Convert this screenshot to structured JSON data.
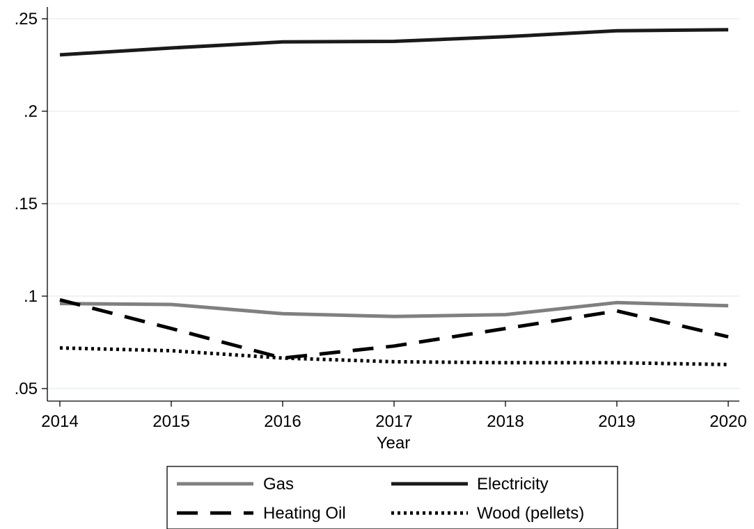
{
  "chart_data": {
    "type": "line",
    "title": "",
    "xlabel": "Year",
    "ylabel": "",
    "x": [
      2014,
      2015,
      2016,
      2017,
      2018,
      2019,
      2020
    ],
    "xlim": [
      2014,
      2020
    ],
    "ylim": [
      0.05,
      0.25
    ],
    "xticks": [
      2014,
      2015,
      2016,
      2017,
      2018,
      2019,
      2020
    ],
    "xtick_labels": [
      "2014",
      "2015",
      "2016",
      "2017",
      "2018",
      "2019",
      "2020"
    ],
    "yticks": [
      0.05,
      0.1,
      0.15,
      0.2,
      0.25
    ],
    "ytick_labels": [
      ".05",
      ".1",
      ".15",
      ".2",
      ".25"
    ],
    "grid": "horizontal",
    "legend_position": "bottom",
    "series": [
      {
        "name": "Gas",
        "color": "#808080",
        "dash": "solid",
        "values": [
          0.096,
          0.0955,
          0.0905,
          0.089,
          0.09,
          0.0965,
          0.0948
        ]
      },
      {
        "name": "Electricity",
        "color": "#1a1a1a",
        "dash": "solid",
        "values": [
          0.2305,
          0.2342,
          0.2375,
          0.2378,
          0.2403,
          0.2435,
          0.2441
        ]
      },
      {
        "name": "Heating Oil",
        "color": "#000000",
        "dash": "dash",
        "values": [
          0.098,
          0.0825,
          0.0665,
          0.073,
          0.0825,
          0.092,
          0.078
        ]
      },
      {
        "name": "Wood (pellets)",
        "color": "#000000",
        "dash": "dot",
        "values": [
          0.072,
          0.0705,
          0.0665,
          0.0645,
          0.064,
          0.064,
          0.063
        ]
      }
    ]
  }
}
